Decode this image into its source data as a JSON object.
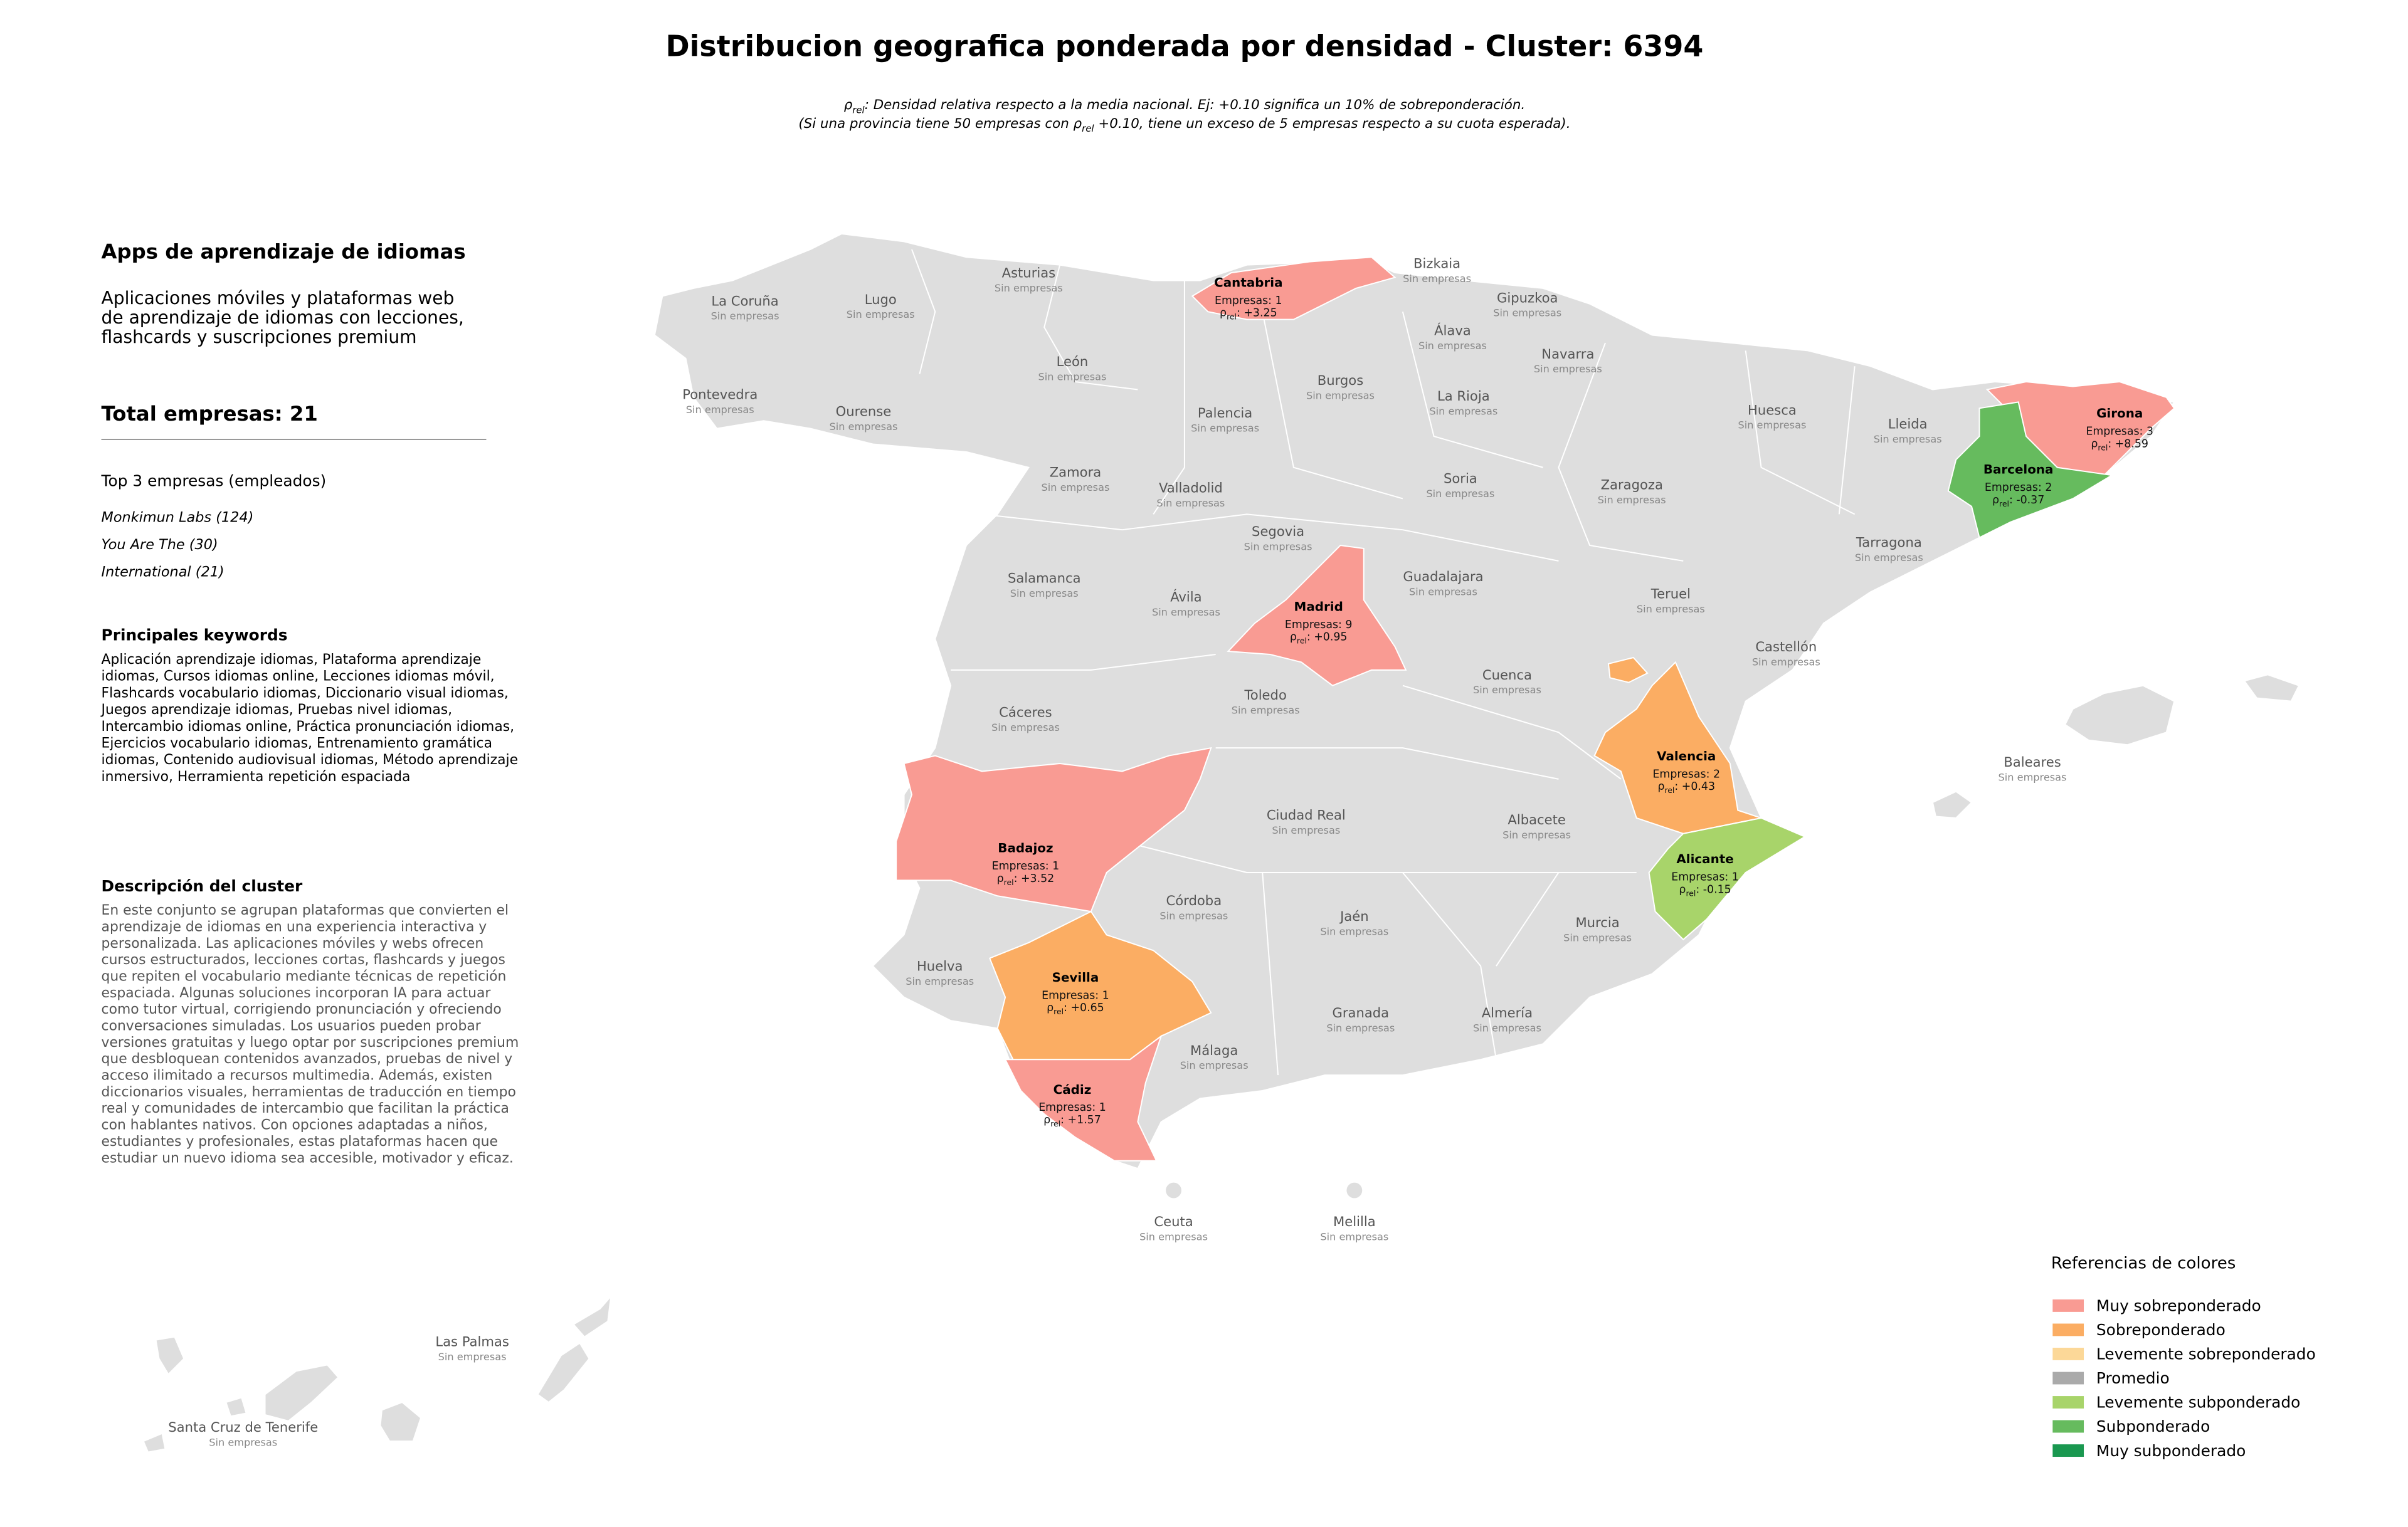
{
  "title": "Distribucion geografica ponderada por densidad - Cluster: 6394",
  "subtitle": [
    {
      "pre": "ρ",
      "sub": "rel",
      "text": ": Densidad relativa respecto a la media nacional. Ej: +0.10 significa un 10% de sobreponderación."
    },
    {
      "pre": "(Si una provincia tiene 50 empresas con ρ",
      "sub": "rel",
      "text": " +0.10, tiene un exceso de 5 empresas respecto a su cuota esperada)."
    }
  ],
  "panel": {
    "heading": "Apps de aprendizaje de idiomas",
    "summary": [
      "Aplicaciones móviles y plataformas web",
      "de aprendizaje de idiomas con lecciones,",
      "flashcards y suscripciones premium"
    ],
    "total": "Total empresas: 21",
    "top_title": "Top 3 empresas (empleados)",
    "top": [
      "Monkimun Labs (124)",
      "You Are The (30)",
      "International (21)"
    ],
    "keywords_title": "Principales keywords",
    "keywords": [
      "Aplicación aprendizaje idiomas, Plataforma aprendizaje",
      "idiomas, Cursos idiomas online, Lecciones idiomas móvil,",
      "Flashcards vocabulario idiomas, Diccionario visual idiomas,",
      "Juegos aprendizaje idiomas, Pruebas nivel idiomas,",
      "Intercambio idiomas online, Práctica pronunciación idiomas,",
      "Ejercicios vocabulario idiomas, Entrenamiento gramática",
      "idiomas, Contenido audiovisual idiomas, Método aprendizaje",
      "inmersivo, Herramienta repetición espaciada"
    ],
    "description_title": "Descripción del cluster",
    "description": [
      "En este conjunto se agrupan plataformas que convierten el",
      "aprendizaje de idiomas en una experiencia interactiva y",
      "personalizada. Las aplicaciones móviles y webs ofrecen",
      "cursos estructurados, lecciones cortas, flashcards y juegos",
      "que repiten el vocabulario mediante técnicas de repetición",
      "espaciada. Algunas soluciones incorporan IA para actuar",
      "como tutor virtual, corrigiendo pronunciación y ofreciendo",
      "conversaciones simuladas. Los usuarios pueden probar",
      "versiones gratuitas y luego optar por suscripciones premium",
      "que desbloquean contenidos avanzados, pruebas de nivel y",
      "acceso ilimitado a recursos multimedia. Además, existen",
      "diccionarios visuales, herramientas de traducción en tiempo",
      "real y comunidades de intercambio que facilitan la práctica",
      "con hablantes nativos. Con opciones adaptadas a niños,",
      "estudiantes y profesionales, estas plataformas hacen que",
      "estudiar un nuevo idioma sea accesible, motivador y eficaz."
    ]
  },
  "rho_symbol": "ρ",
  "rho_sub": "rel",
  "rho_sep": ": ",
  "provinces": [
    {
      "name": "Cantabria",
      "color": "#f99b93",
      "companies": "Empresas: 1",
      "rho": "+3.25"
    },
    {
      "name": "Girona",
      "color": "#f99b93",
      "companies": "Empresas: 3",
      "rho": "+8.59"
    },
    {
      "name": "Barcelona",
      "color": "#66bb5e",
      "companies": "Empresas: 2",
      "rho": "-0.37"
    },
    {
      "name": "Madrid",
      "color": "#f99b93",
      "companies": "Empresas: 9",
      "rho": "+0.95"
    },
    {
      "name": "Valencia",
      "color": "#fbad63",
      "companies": "Empresas: 2",
      "rho": "+0.43"
    },
    {
      "name": "Alicante",
      "color": "#a8d46a",
      "companies": "Empresas: 1",
      "rho": "-0.15"
    },
    {
      "name": "Badajoz",
      "color": "#f99b93",
      "companies": "Empresas: 1",
      "rho": "+3.52"
    },
    {
      "name": "Sevilla",
      "color": "#fbad63",
      "companies": "Empresas: 1",
      "rho": "+0.65"
    },
    {
      "name": "Cádiz",
      "color": "#f99b93",
      "companies": "Empresas: 1",
      "rho": "+1.57"
    },
    {
      "name": "La Coruña",
      "status": "Sin empresas"
    },
    {
      "name": "Lugo",
      "status": "Sin empresas"
    },
    {
      "name": "Asturias",
      "status": "Sin empresas"
    },
    {
      "name": "Bizkaia",
      "status": "Sin empresas"
    },
    {
      "name": "Gipuzkoa",
      "status": "Sin empresas"
    },
    {
      "name": "Álava",
      "status": "Sin empresas"
    },
    {
      "name": "Navarra",
      "status": "Sin empresas"
    },
    {
      "name": "León",
      "status": "Sin empresas"
    },
    {
      "name": "Burgos",
      "status": "Sin empresas"
    },
    {
      "name": "La Rioja",
      "status": "Sin empresas"
    },
    {
      "name": "Pontevedra",
      "status": "Sin empresas"
    },
    {
      "name": "Ourense",
      "status": "Sin empresas"
    },
    {
      "name": "Palencia",
      "status": "Sin empresas"
    },
    {
      "name": "Huesca",
      "status": "Sin empresas"
    },
    {
      "name": "Lleida",
      "status": "Sin empresas"
    },
    {
      "name": "Zamora",
      "status": "Sin empresas"
    },
    {
      "name": "Soria",
      "status": "Sin empresas"
    },
    {
      "name": "Zaragoza",
      "status": "Sin empresas"
    },
    {
      "name": "Valladolid",
      "status": "Sin empresas"
    },
    {
      "name": "Segovia",
      "status": "Sin empresas"
    },
    {
      "name": "Tarragona",
      "status": "Sin empresas"
    },
    {
      "name": "Salamanca",
      "status": "Sin empresas"
    },
    {
      "name": "Guadalajara",
      "status": "Sin empresas"
    },
    {
      "name": "Ávila",
      "status": "Sin empresas"
    },
    {
      "name": "Teruel",
      "status": "Sin empresas"
    },
    {
      "name": "Castellón",
      "status": "Sin empresas"
    },
    {
      "name": "Cuenca",
      "status": "Sin empresas"
    },
    {
      "name": "Toledo",
      "status": "Sin empresas"
    },
    {
      "name": "Cáceres",
      "status": "Sin empresas"
    },
    {
      "name": "Baleares",
      "status": "Sin empresas"
    },
    {
      "name": "Ciudad Real",
      "status": "Sin empresas"
    },
    {
      "name": "Albacete",
      "status": "Sin empresas"
    },
    {
      "name": "Córdoba",
      "status": "Sin empresas"
    },
    {
      "name": "Jaén",
      "status": "Sin empresas"
    },
    {
      "name": "Huelva",
      "status": "Sin empresas"
    },
    {
      "name": "Murcia",
      "status": "Sin empresas"
    },
    {
      "name": "Granada",
      "status": "Sin empresas"
    },
    {
      "name": "Almería",
      "status": "Sin empresas"
    },
    {
      "name": "Málaga",
      "status": "Sin empresas"
    },
    {
      "name": "Ceuta",
      "status": "Sin empresas"
    },
    {
      "name": "Melilla",
      "status": "Sin empresas"
    },
    {
      "name": "Las Palmas",
      "status": "Sin empresas"
    },
    {
      "name": "Santa Cruz de Tenerife",
      "status": "Sin empresas"
    }
  ],
  "base_color": "#dedede",
  "legend": {
    "title": "Referencias de colores",
    "items": [
      {
        "label": "Muy sobreponderado",
        "color": "#f99b93"
      },
      {
        "label": "Sobreponderado",
        "color": "#fbad63"
      },
      {
        "label": "Levemente sobreponderado",
        "color": "#fcd898"
      },
      {
        "label": "Promedio",
        "color": "#aaaaaa"
      },
      {
        "label": "Levemente subponderado",
        "color": "#a8d46a"
      },
      {
        "label": "Subponderado",
        "color": "#66bb5e"
      },
      {
        "label": "Muy subponderado",
        "color": "#1a9850"
      }
    ]
  }
}
